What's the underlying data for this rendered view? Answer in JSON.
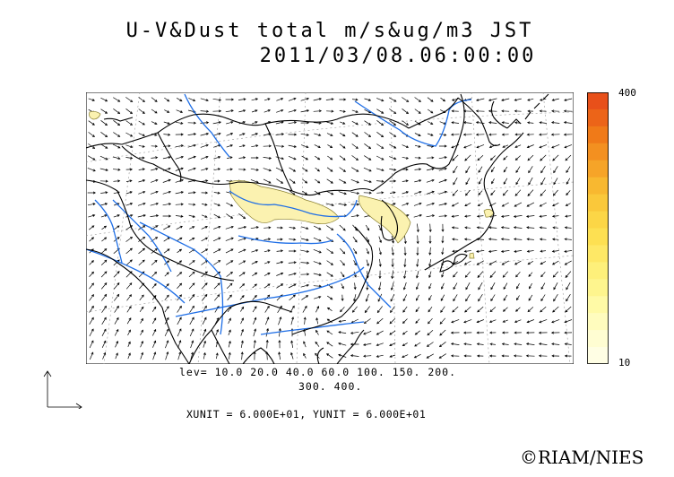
{
  "title": {
    "line1": "U-V&Dust total m/s&ug/m3 JST",
    "line2": "2011/03/08.06:00:00"
  },
  "colorbar": {
    "max_label": "400",
    "min_label": "10",
    "colors": [
      "#e8501a",
      "#ec6418",
      "#f07a18",
      "#f39020",
      "#f6a428",
      "#f8b830",
      "#fac83a",
      "#fcd646",
      "#fde052",
      "#fee866",
      "#fef07a",
      "#fef58e",
      "#fffaa6",
      "#fffcbe",
      "#fffdd2",
      "#fffee4"
    ]
  },
  "legend": {
    "levels_line1": "lev= 10.0 20.0 40.0 60.0 100. 150. 200.",
    "levels_line2": "300. 400.",
    "units": "XUNIT = 6.000E+01, YUNIT = 6.000E+01"
  },
  "credit": "©RIAM/NIES",
  "colors": {
    "coast": "#000000",
    "river": "#1e6ee6",
    "dust": "#fbf2b0",
    "grid": "#888888"
  }
}
